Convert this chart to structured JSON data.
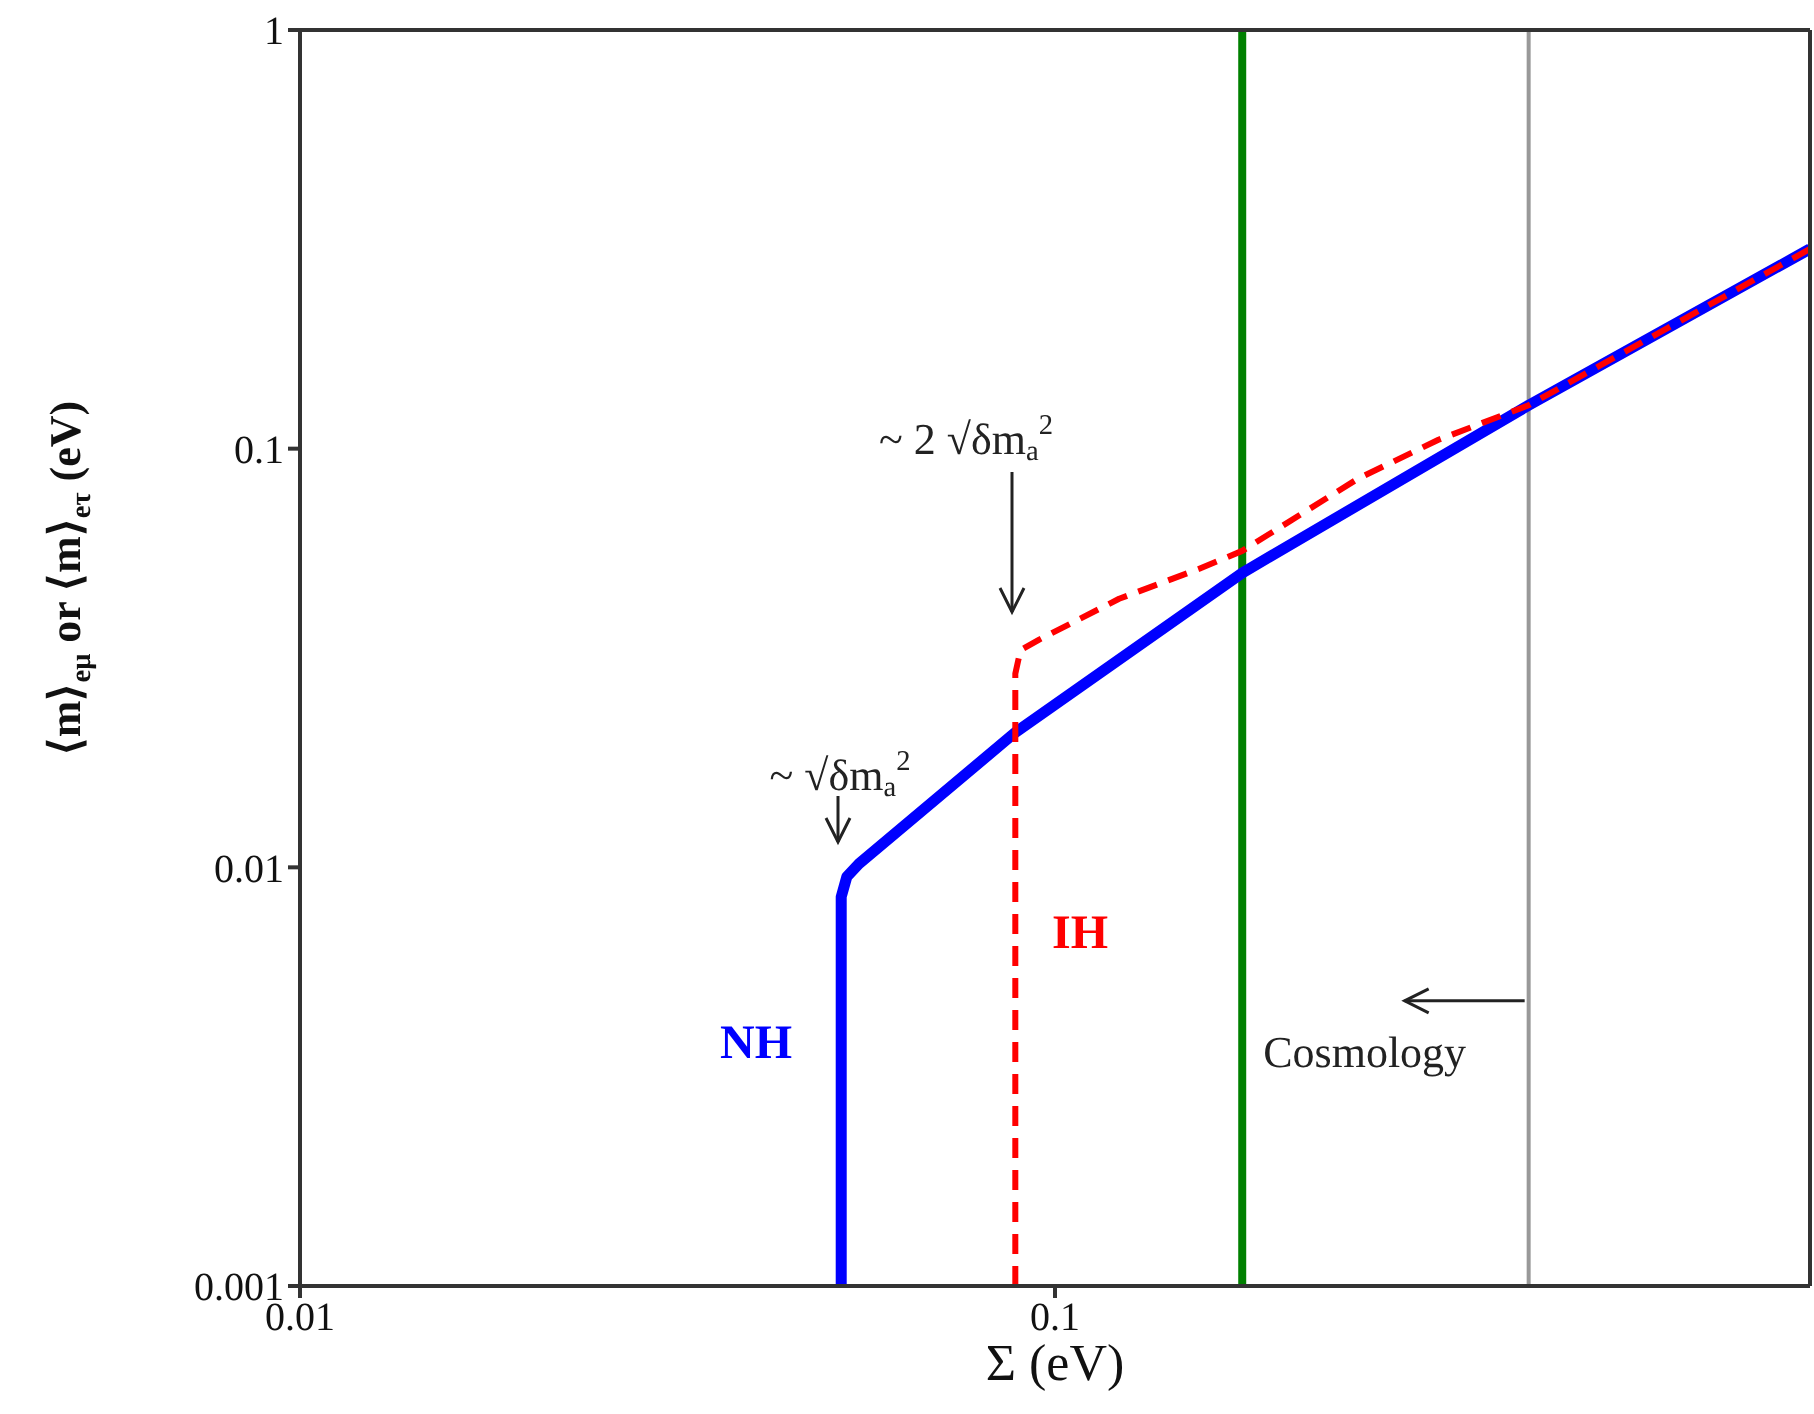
{
  "chart_data": {
    "type": "line",
    "xlabel": "Σ (eV)",
    "ylabel": "⟨m⟩$_{eμ}$  or ⟨m⟩$_{eτ}$  (eV)",
    "log": "xy",
    "xlim": [
      0.01,
      1
    ],
    "ylim": [
      0.001,
      1
    ],
    "xticks": [
      0.01,
      0.1
    ],
    "yticks": [
      0.001,
      0.01,
      0.1,
      1
    ],
    "marker": "none",
    "series": [
      {
        "color": "#0000ff",
        "line_style": "solid",
        "x": [
          0.0521,
          0.0521,
          0.053,
          0.055,
          0.0886,
          0.177,
          0.424,
          1
        ],
        "values": [
          0.001,
          0.0085,
          0.0095,
          0.0102,
          0.021,
          0.0505,
          0.127,
          0.3
        ]
      },
      {
        "color": "#ff0000",
        "line_style": "dashed",
        "x": [
          0.0886,
          0.0886,
          0.09,
          0.0953,
          0.1216,
          0.155,
          0.177,
          0.252,
          0.322,
          0.424,
          1
        ],
        "values": [
          0.001,
          0.029,
          0.033,
          0.035,
          0.0438,
          0.0516,
          0.057,
          0.0848,
          0.105,
          0.127,
          0.3
        ]
      }
    ],
    "ref_lines": [
      {
        "axis": "x",
        "value": 0.177,
        "color": "#008000"
      },
      {
        "axis": "x",
        "value": 0.424,
        "color": "#999999"
      }
    ],
    "annotations": [
      "~ √δm$_{a}$$^{2}$",
      "~ 2 √δm$_{a}$$^{2}$",
      "NH",
      "IH",
      {
        "text": "Cosmology",
        "x": 0.424,
        "y": 0.0048
      }
    ]
  }
}
